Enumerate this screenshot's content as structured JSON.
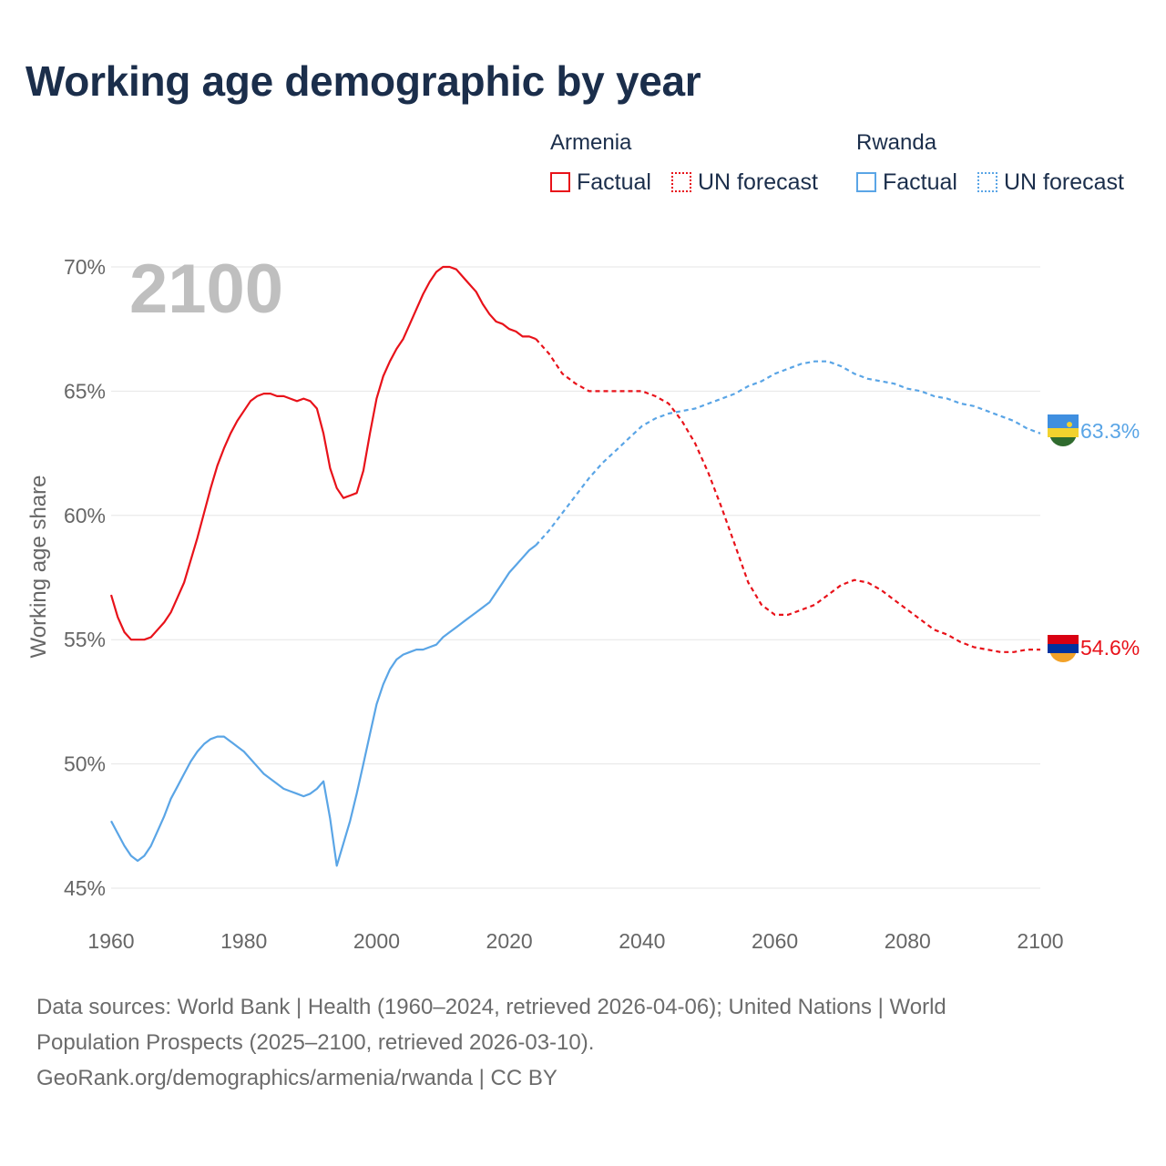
{
  "title": "Working age demographic by year",
  "legend": {
    "groups": [
      {
        "name": "Armenia",
        "factual": "Factual",
        "forecast": "UN forecast",
        "color": "#e8121a"
      },
      {
        "name": "Rwanda",
        "factual": "Factual",
        "forecast": "UN forecast",
        "color": "#5aa5e6"
      }
    ]
  },
  "footer": {
    "line1": "Data sources: World Bank | Health (1960–2024, retrieved 2026-04-06); United Nations | World",
    "line2": "Population Prospects (2025–2100, retrieved 2026-03-10).",
    "line3": "GeoRank.org/demographics/armenia/rwanda | CC BY"
  },
  "chart_data": {
    "type": "line",
    "title": "Working age demographic by year",
    "year_label": "2100",
    "xlabel": "",
    "ylabel": "Working age share",
    "xlim": [
      1960,
      2100
    ],
    "ylim": [
      45,
      70
    ],
    "x_ticks": [
      1960,
      1980,
      2000,
      2020,
      2040,
      2060,
      2080,
      2100
    ],
    "x_tick_labels": [
      "1960",
      "1980",
      "2000",
      "2020",
      "2040",
      "2060",
      "2080",
      "2100"
    ],
    "y_ticks": [
      45,
      50,
      55,
      60,
      65,
      70
    ],
    "y_tick_labels": [
      "45%",
      "50%",
      "55%",
      "60%",
      "65%",
      "70%"
    ],
    "forecast_start": 2024,
    "series": [
      {
        "name": "Armenia",
        "color": "#e8121a",
        "end_label": "54.6%",
        "x": [
          1960,
          1961,
          1962,
          1963,
          1964,
          1965,
          1966,
          1967,
          1968,
          1969,
          1970,
          1971,
          1972,
          1973,
          1974,
          1975,
          1976,
          1977,
          1978,
          1979,
          1980,
          1981,
          1982,
          1983,
          1984,
          1985,
          1986,
          1987,
          1988,
          1989,
          1990,
          1991,
          1992,
          1993,
          1994,
          1995,
          1996,
          1997,
          1998,
          1999,
          2000,
          2001,
          2002,
          2003,
          2004,
          2005,
          2006,
          2007,
          2008,
          2009,
          2010,
          2011,
          2012,
          2013,
          2014,
          2015,
          2016,
          2017,
          2018,
          2019,
          2020,
          2021,
          2022,
          2023,
          2024,
          2026,
          2028,
          2030,
          2032,
          2034,
          2036,
          2038,
          2040,
          2042,
          2044,
          2046,
          2048,
          2050,
          2052,
          2054,
          2056,
          2058,
          2060,
          2062,
          2064,
          2066,
          2068,
          2070,
          2072,
          2074,
          2076,
          2078,
          2080,
          2082,
          2084,
          2086,
          2088,
          2090,
          2092,
          2094,
          2096,
          2098,
          2100
        ],
        "values": [
          56.8,
          55.9,
          55.3,
          55.0,
          55.0,
          55.0,
          55.1,
          55.4,
          55.7,
          56.1,
          56.7,
          57.3,
          58.2,
          59.1,
          60.1,
          61.1,
          62.0,
          62.7,
          63.3,
          63.8,
          64.2,
          64.6,
          64.8,
          64.9,
          64.9,
          64.8,
          64.8,
          64.7,
          64.6,
          64.7,
          64.6,
          64.3,
          63.3,
          61.9,
          61.1,
          60.7,
          60.8,
          60.9,
          61.8,
          63.3,
          64.7,
          65.6,
          66.2,
          66.7,
          67.1,
          67.7,
          68.3,
          68.9,
          69.4,
          69.8,
          70.0,
          70.0,
          69.9,
          69.6,
          69.3,
          69.0,
          68.5,
          68.1,
          67.8,
          67.7,
          67.5,
          67.4,
          67.2,
          67.2,
          67.1,
          66.5,
          65.7,
          65.3,
          65.0,
          65.0,
          65.0,
          65.0,
          65.0,
          64.8,
          64.5,
          63.8,
          62.9,
          61.7,
          60.3,
          58.8,
          57.3,
          56.4,
          56.0,
          56.0,
          56.2,
          56.4,
          56.8,
          57.2,
          57.4,
          57.3,
          57.0,
          56.6,
          56.2,
          55.8,
          55.4,
          55.2,
          54.9,
          54.7,
          54.6,
          54.5,
          54.5,
          54.6,
          54.6
        ]
      },
      {
        "name": "Rwanda",
        "color": "#5aa5e6",
        "end_label": "63.3%",
        "x": [
          1960,
          1961,
          1962,
          1963,
          1964,
          1965,
          1966,
          1967,
          1968,
          1969,
          1970,
          1971,
          1972,
          1973,
          1974,
          1975,
          1976,
          1977,
          1978,
          1979,
          1980,
          1981,
          1982,
          1983,
          1984,
          1985,
          1986,
          1987,
          1988,
          1989,
          1990,
          1991,
          1992,
          1993,
          1994,
          1995,
          1996,
          1997,
          1998,
          1999,
          2000,
          2001,
          2002,
          2003,
          2004,
          2005,
          2006,
          2007,
          2008,
          2009,
          2010,
          2011,
          2012,
          2013,
          2014,
          2015,
          2016,
          2017,
          2018,
          2019,
          2020,
          2021,
          2022,
          2023,
          2024,
          2026,
          2028,
          2030,
          2032,
          2034,
          2036,
          2038,
          2040,
          2042,
          2044,
          2046,
          2048,
          2050,
          2052,
          2054,
          2056,
          2058,
          2060,
          2062,
          2064,
          2066,
          2068,
          2070,
          2072,
          2074,
          2076,
          2078,
          2080,
          2082,
          2084,
          2086,
          2088,
          2090,
          2092,
          2094,
          2096,
          2098,
          2100
        ],
        "values": [
          47.7,
          47.2,
          46.7,
          46.3,
          46.1,
          46.3,
          46.7,
          47.3,
          47.9,
          48.6,
          49.1,
          49.6,
          50.1,
          50.5,
          50.8,
          51.0,
          51.1,
          51.1,
          50.9,
          50.7,
          50.5,
          50.2,
          49.9,
          49.6,
          49.4,
          49.2,
          49.0,
          48.9,
          48.8,
          48.7,
          48.8,
          49.0,
          49.3,
          47.8,
          45.9,
          46.8,
          47.7,
          48.8,
          50.0,
          51.2,
          52.4,
          53.2,
          53.8,
          54.2,
          54.4,
          54.5,
          54.6,
          54.6,
          54.7,
          54.8,
          55.1,
          55.3,
          55.5,
          55.7,
          55.9,
          56.1,
          56.3,
          56.5,
          56.9,
          57.3,
          57.7,
          58.0,
          58.3,
          58.6,
          58.8,
          59.4,
          60.1,
          60.8,
          61.5,
          62.1,
          62.6,
          63.1,
          63.6,
          63.9,
          64.1,
          64.2,
          64.3,
          64.5,
          64.7,
          64.9,
          65.2,
          65.4,
          65.7,
          65.9,
          66.1,
          66.2,
          66.2,
          66.0,
          65.7,
          65.5,
          65.4,
          65.3,
          65.1,
          65.0,
          64.8,
          64.7,
          64.5,
          64.4,
          64.2,
          64.0,
          63.8,
          63.5,
          63.3
        ]
      }
    ]
  }
}
